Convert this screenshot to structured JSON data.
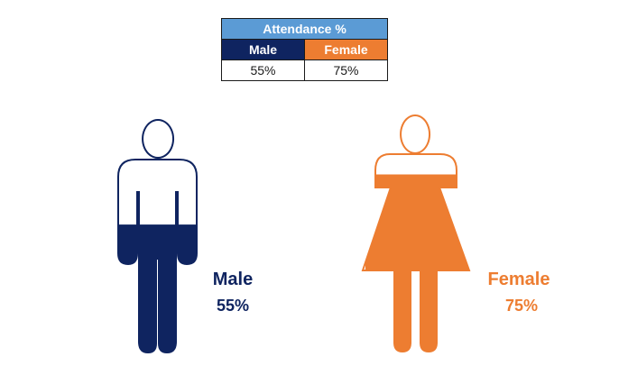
{
  "table": {
    "title": "Attendance %",
    "male_header": "Male",
    "female_header": "Female",
    "male_value": "55%",
    "female_value": "75%"
  },
  "labels": {
    "male_name": "Male",
    "male_pct": "55%",
    "female_name": "Female",
    "female_pct": "75%"
  },
  "colors": {
    "male": "#0f2460",
    "female": "#ed7d31",
    "table_title": "#5b9bd5"
  },
  "chart_data": {
    "type": "pictograph",
    "title": "Attendance %",
    "categories": [
      "Male",
      "Female"
    ],
    "values": [
      55,
      75
    ],
    "unit": "%",
    "ylim": [
      0,
      100
    ]
  }
}
